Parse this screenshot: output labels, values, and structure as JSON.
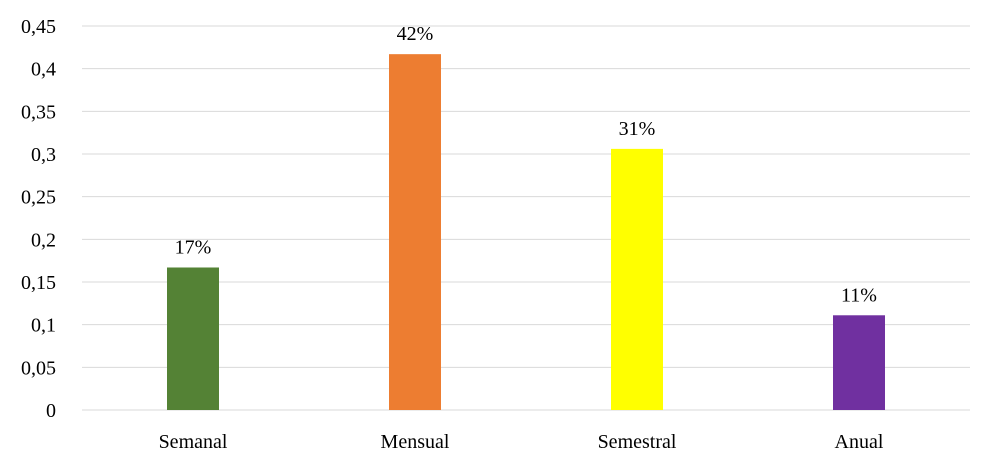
{
  "chart_data": {
    "type": "bar",
    "categories": [
      "Semanal",
      "Mensual",
      "Semestral",
      "Anual"
    ],
    "values": [
      0.167,
      0.417,
      0.306,
      0.111
    ],
    "data_labels": [
      "17%",
      "42%",
      "31%",
      "11%"
    ],
    "colors": [
      "#548235",
      "#ed7d31",
      "#ffff00",
      "#7030a0"
    ],
    "y_ticks": [
      "0",
      "0,05",
      "0,1",
      "0,15",
      "0,2",
      "0,25",
      "0,3",
      "0,35",
      "0,4",
      "0,45"
    ],
    "ylim": [
      0,
      0.45
    ],
    "grid": true,
    "legend": "none",
    "title": "",
    "xlabel": "",
    "ylabel": ""
  }
}
